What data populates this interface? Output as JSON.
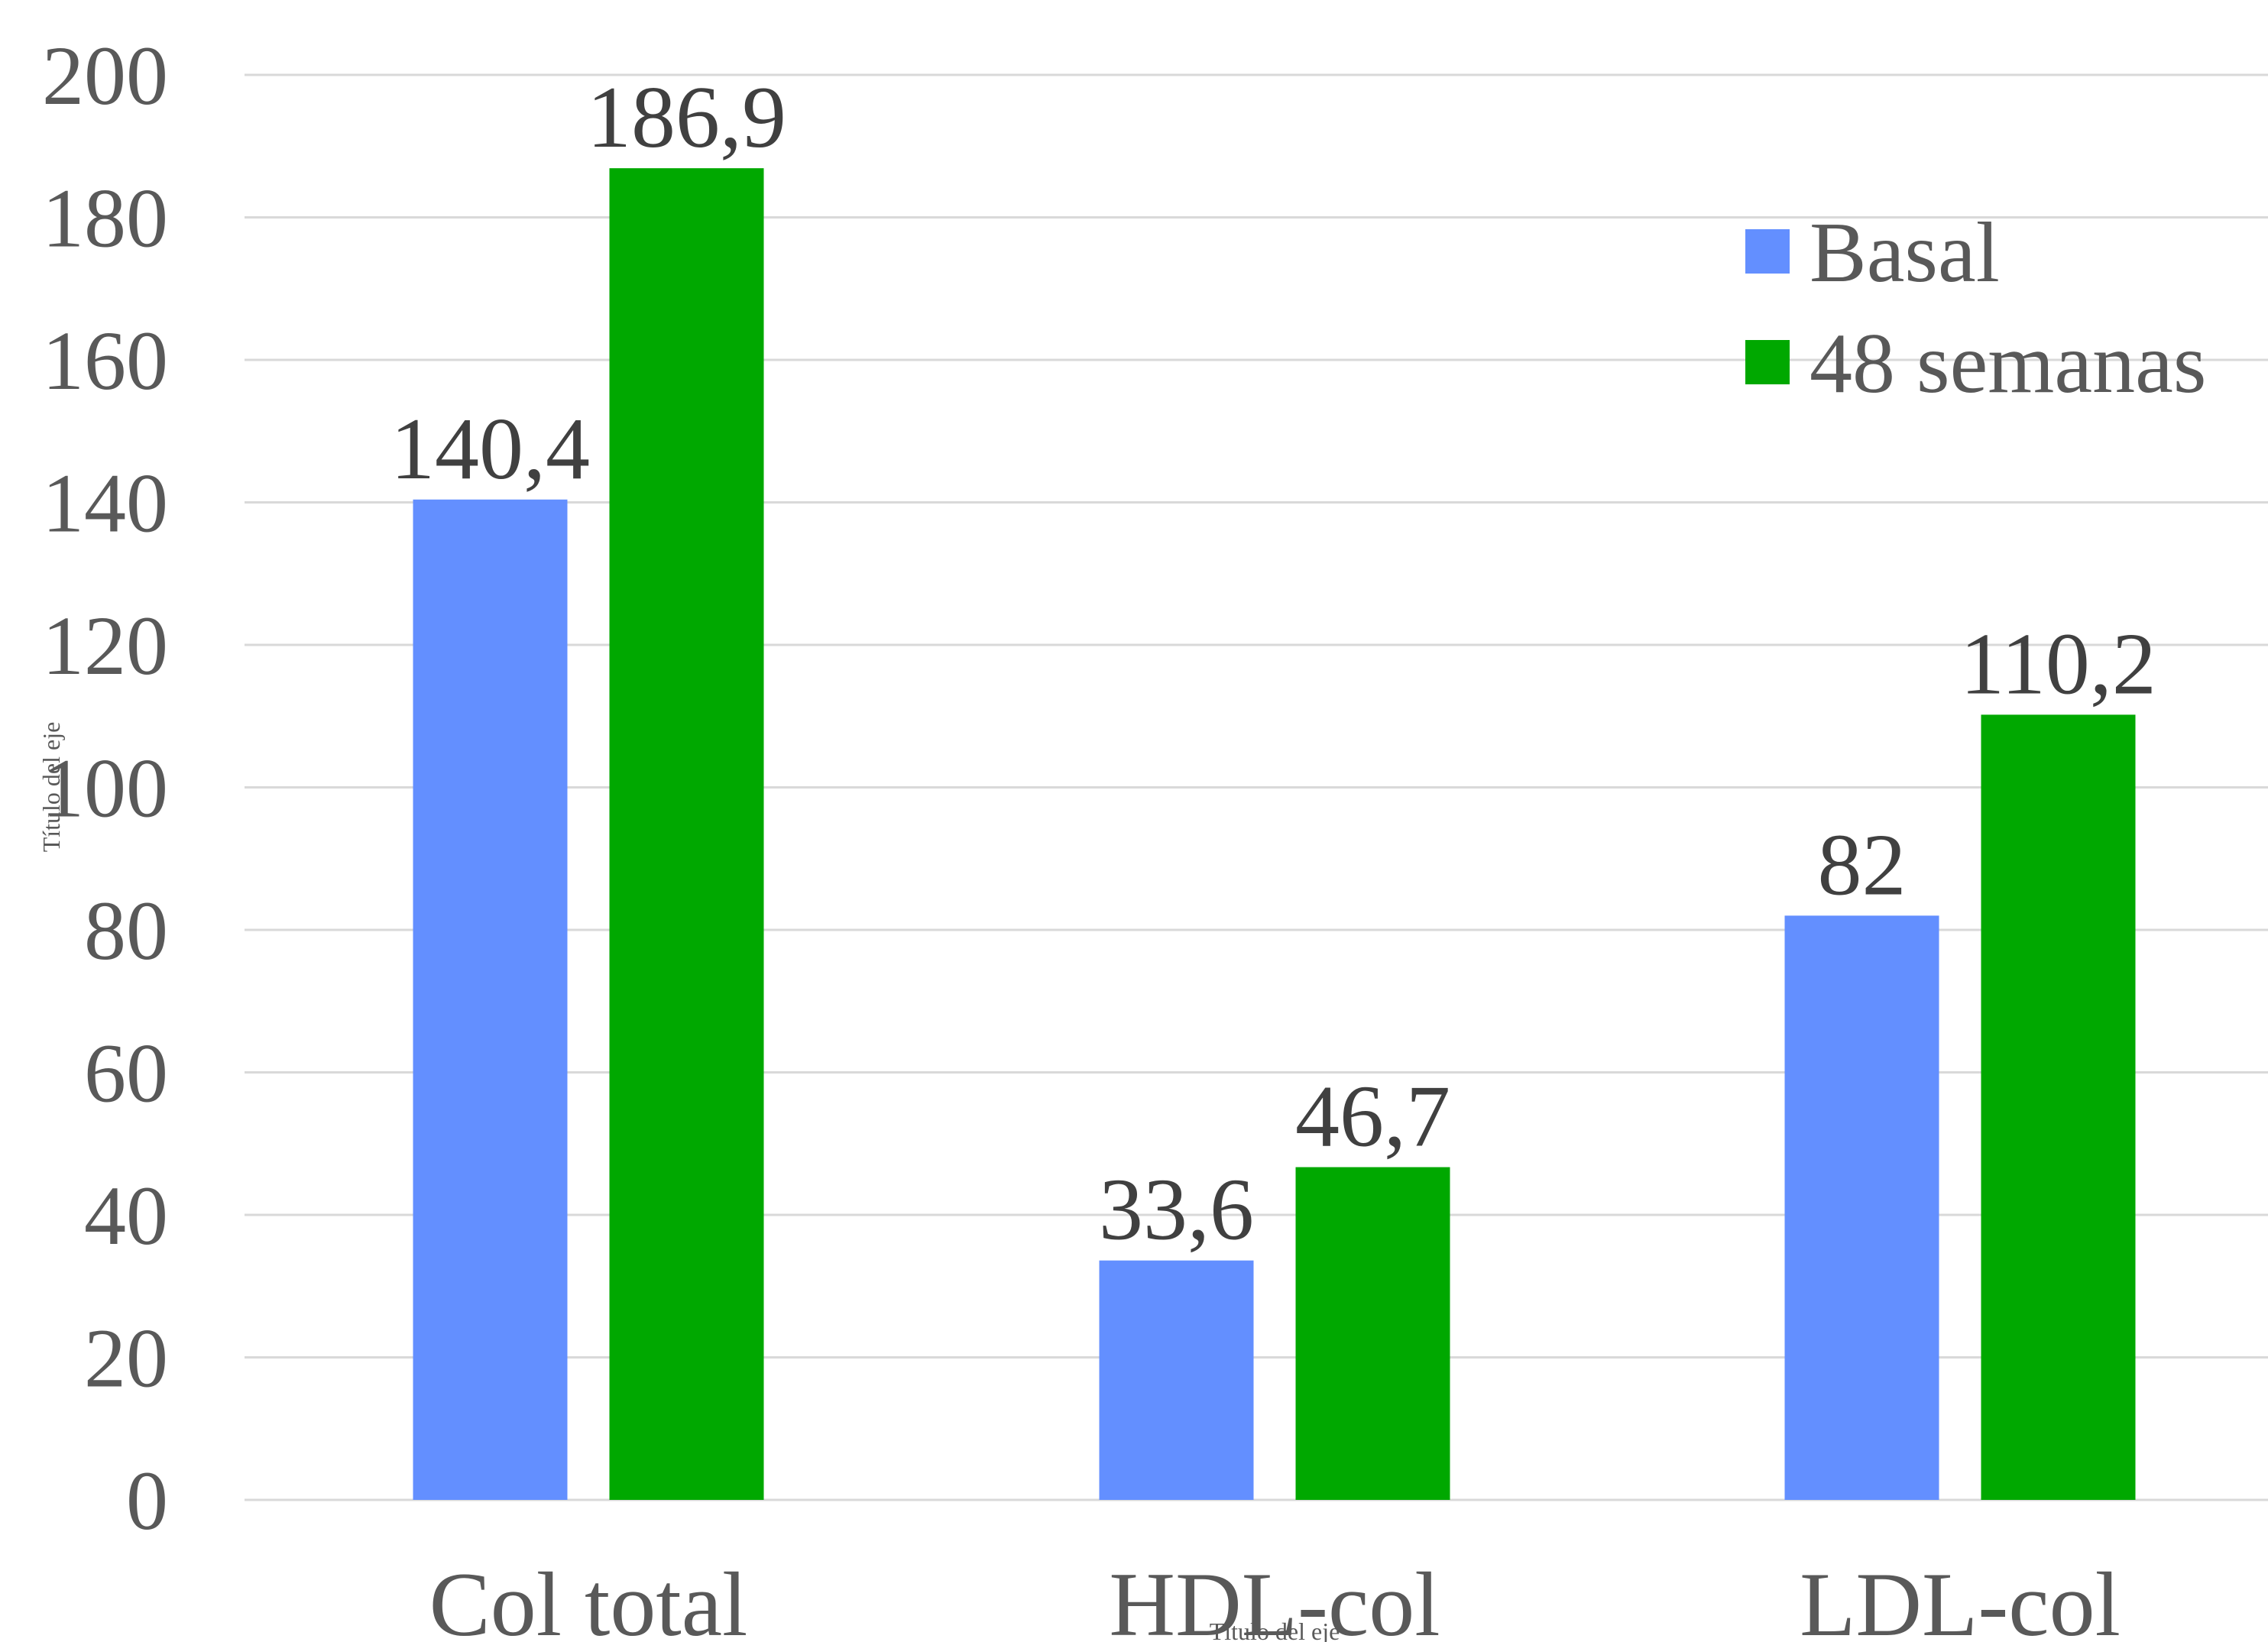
{
  "chart_data": {
    "type": "bar",
    "categories": [
      "Col total",
      "HDL-col",
      "LDL-col"
    ],
    "series": [
      {
        "name": "Basal",
        "values": [
          140.4,
          33.6,
          82
        ],
        "labels": [
          "140,4",
          "33,6",
          "82"
        ],
        "color": "#638FFF"
      },
      {
        "name": "48 semanas",
        "values": [
          186.9,
          46.7,
          110.2
        ],
        "labels": [
          "186,9",
          "46,7",
          "110,2"
        ],
        "color": "#00A800"
      }
    ],
    "ylim": [
      0,
      200
    ],
    "yticks": [
      0,
      20,
      40,
      60,
      80,
      100,
      120,
      140,
      160,
      180,
      200
    ],
    "xlabel": "Título del eje",
    "ylabel": "Título del eje",
    "grid": true,
    "legend_position": "top-right"
  }
}
